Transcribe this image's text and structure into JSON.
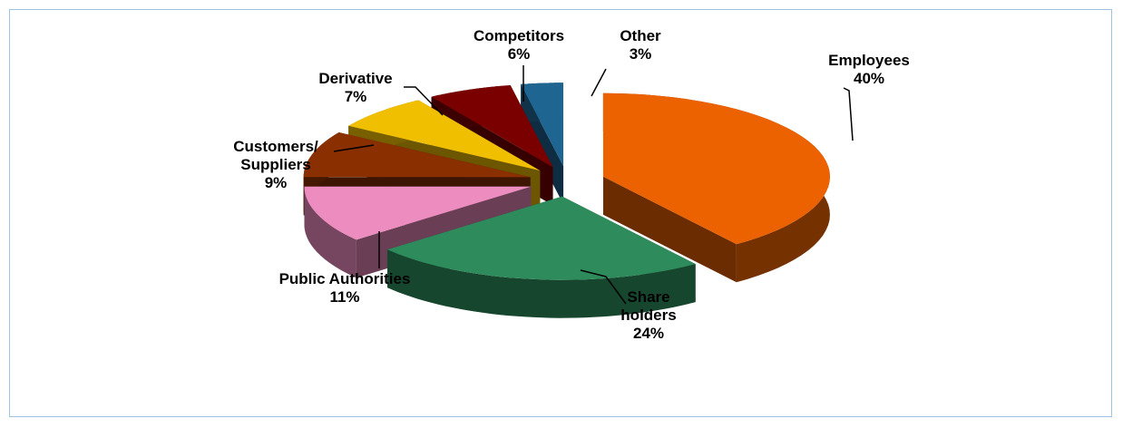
{
  "chart_data": {
    "type": "pie3d",
    "categories": [
      "Employees",
      "Share holders",
      "Public Authorities",
      "Customers/ Suppliers",
      "Derivative",
      "Competitors",
      "Other"
    ],
    "values": [
      40,
      24,
      11,
      9,
      7,
      6,
      3
    ],
    "value_labels": [
      "40%",
      "24%",
      "11%",
      "9%",
      "7%",
      "6%",
      "3%"
    ],
    "colors": [
      "#ec6200",
      "#2e8b5c",
      "#ec8cbf",
      "#8a2f00",
      "#f0c000",
      "#7a0000",
      "#1f6592"
    ]
  }
}
